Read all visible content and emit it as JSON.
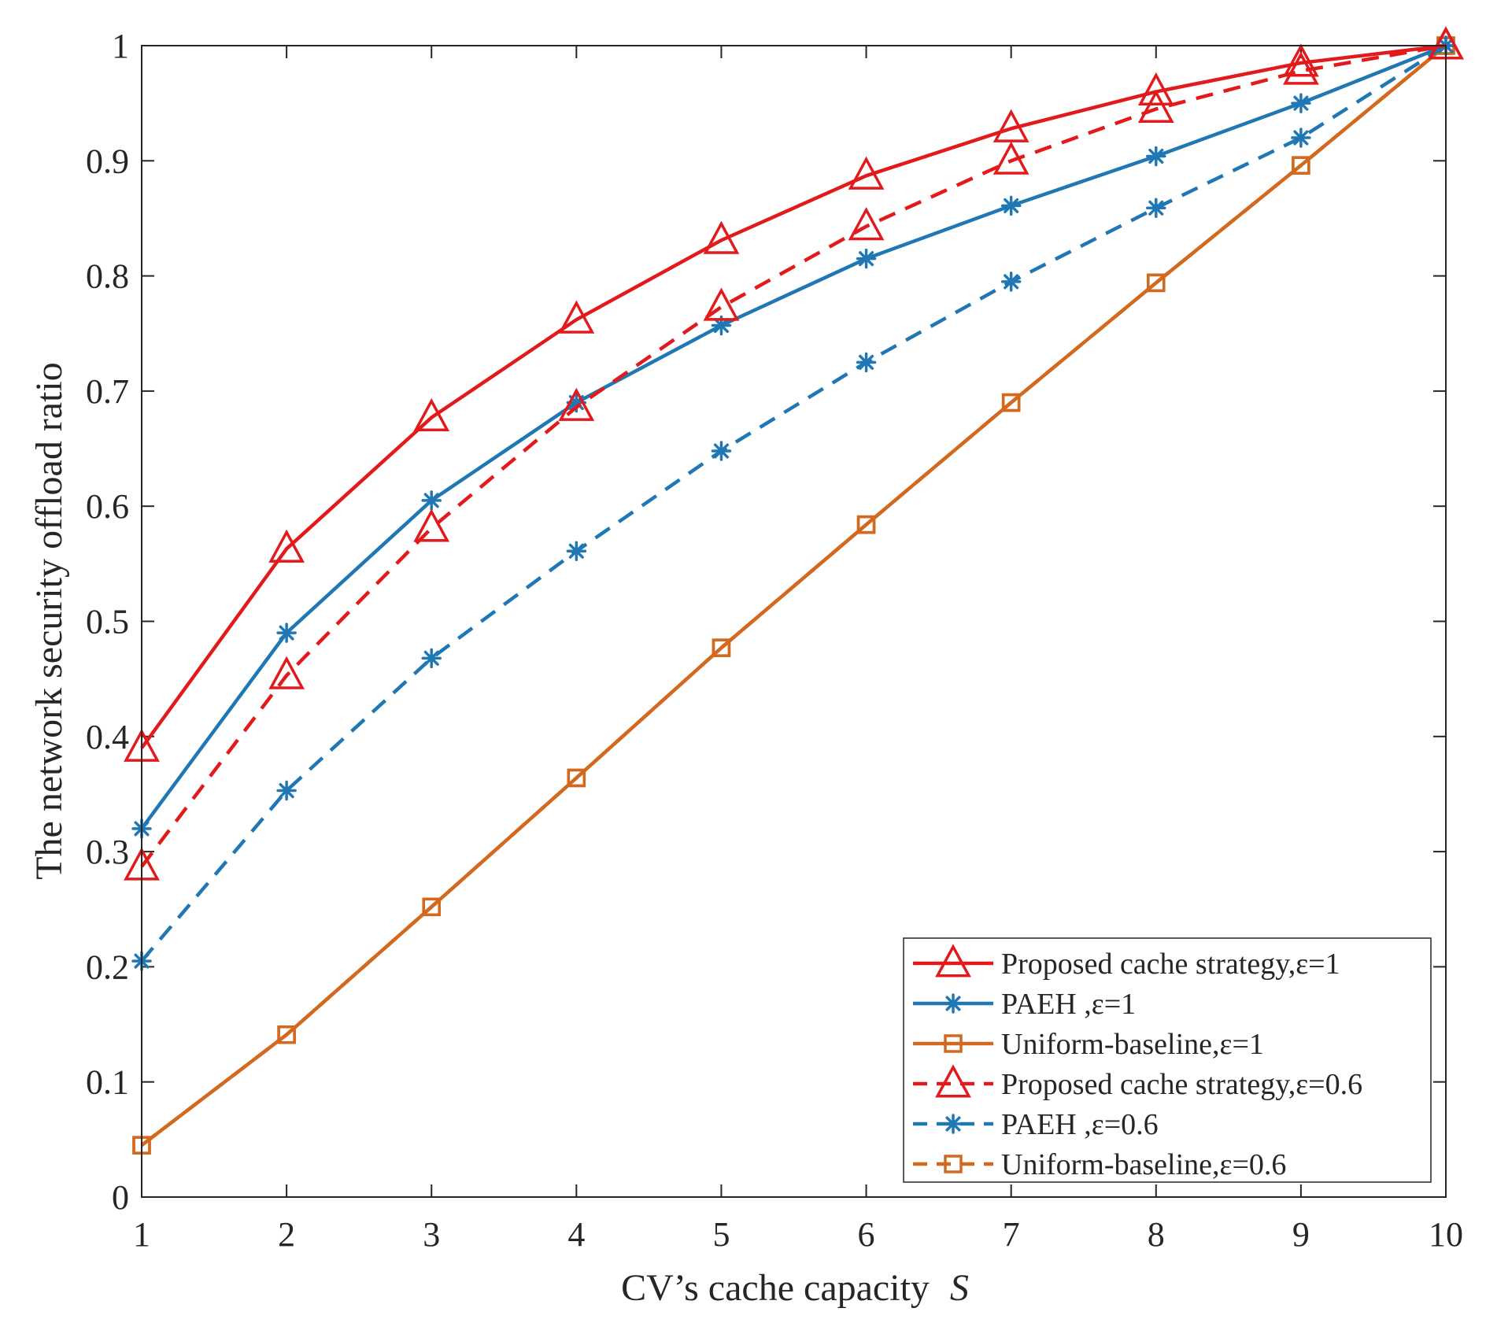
{
  "chart_data": {
    "type": "line",
    "title": "",
    "xlabel": "CV’s cache capacity",
    "xlabel_symbol": "S",
    "ylabel": "The network security offload ratio",
    "xlim": [
      1,
      10
    ],
    "ylim": [
      0,
      1
    ],
    "xticks": [
      1,
      2,
      3,
      4,
      5,
      6,
      7,
      8,
      9,
      10
    ],
    "yticks": [
      0,
      0.1,
      0.2,
      0.3,
      0.4,
      0.5,
      0.6,
      0.7,
      0.8,
      0.9,
      1
    ],
    "ytick_labels": [
      "0",
      "0.1",
      "0.2",
      "0.3",
      "0.4",
      "0.5",
      "0.6",
      "0.7",
      "0.8",
      "0.9",
      "1"
    ],
    "grid": false,
    "legend_position": "bottom-right",
    "x": [
      1,
      2,
      3,
      4,
      5,
      6,
      7,
      8,
      9,
      10
    ],
    "series": [
      {
        "name": "Proposed cache strategy,ε=1",
        "color": "#e31a1c",
        "dash": "solid",
        "marker": "triangle",
        "values": [
          0.39,
          0.563,
          0.677,
          0.762,
          0.831,
          0.887,
          0.928,
          0.96,
          0.985,
          1.0
        ]
      },
      {
        "name": "PAEH ,ε=1",
        "color": "#1f77b4",
        "dash": "solid",
        "marker": "asterisk",
        "values": [
          0.32,
          0.49,
          0.605,
          0.69,
          0.757,
          0.815,
          0.861,
          0.904,
          0.95,
          1.0
        ]
      },
      {
        "name": "Uniform-baseline,ε=1",
        "color": "#d2691e",
        "dash": "solid",
        "marker": "square",
        "values": [
          0.045,
          0.141,
          0.252,
          0.364,
          0.477,
          0.584,
          0.69,
          0.794,
          0.896,
          1.0
        ]
      },
      {
        "name": "Proposed cache strategy,ε=0.6",
        "color": "#e31a1c",
        "dash": "dashed",
        "marker": "triangle",
        "values": [
          0.287,
          0.453,
          0.581,
          0.686,
          0.773,
          0.843,
          0.9,
          0.945,
          0.978,
          1.0
        ]
      },
      {
        "name": "PAEH ,ε=0.6",
        "color": "#1f77b4",
        "dash": "dashed",
        "marker": "asterisk",
        "values": [
          0.205,
          0.353,
          0.468,
          0.561,
          0.648,
          0.725,
          0.795,
          0.859,
          0.92,
          1.0
        ]
      },
      {
        "name": "Uniform-baseline,ε=0.6",
        "color": "#d2691e",
        "dash": "dashed",
        "marker": "square",
        "values": [
          0.045,
          0.141,
          0.252,
          0.364,
          0.477,
          0.584,
          0.69,
          0.794,
          0.896,
          1.0
        ]
      }
    ]
  }
}
